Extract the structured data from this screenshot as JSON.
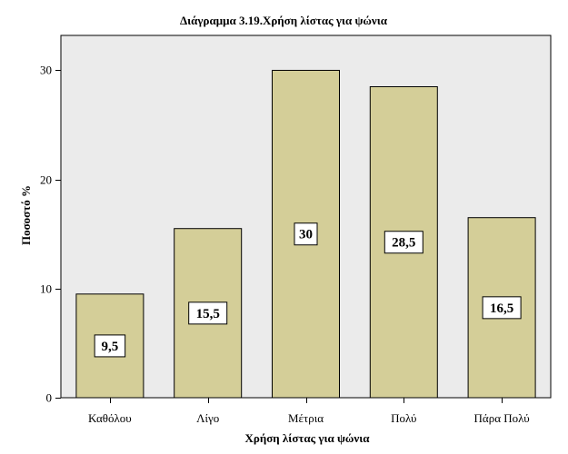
{
  "chart_data": {
    "type": "bar",
    "title": "Διάγραμμα 3.19.Χρήση λίστας για ψώνια",
    "xlabel": "Χρήση λίστας για ψώνια",
    "ylabel": "Ποσοστό %",
    "categories": [
      "Καθόλου",
      "Λίγο",
      "Μέτρια",
      "Πολύ",
      "Πάρα Πολύ"
    ],
    "values": [
      9.5,
      15.5,
      30,
      28.5,
      16.5
    ],
    "value_labels": [
      "9,5",
      "15,5",
      "30",
      "28,5",
      "16,5"
    ],
    "yticks": [
      0,
      10,
      20,
      30
    ],
    "ylim": [
      0,
      33.2
    ],
    "grid": false,
    "legend": "none",
    "colors": {
      "bar_fill": "#D4CE98",
      "plot_background": "#EBEBEB",
      "outline": "#000000"
    }
  }
}
